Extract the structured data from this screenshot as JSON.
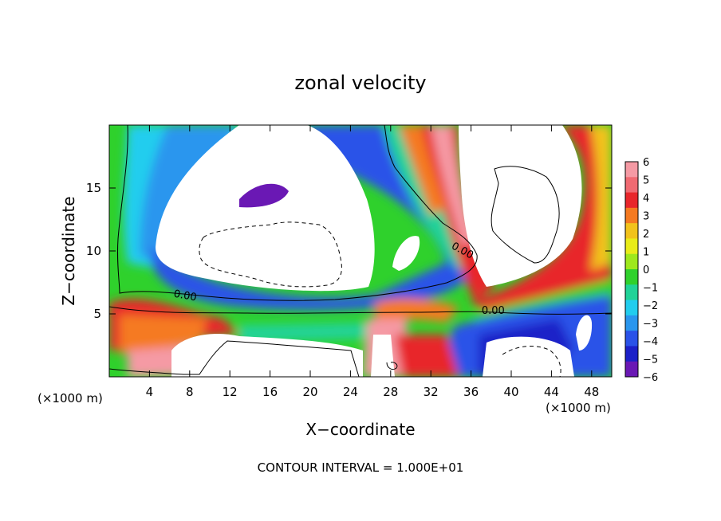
{
  "chart_data": {
    "type": "heatmap",
    "title": "zonal velocity",
    "xlabel": "X−coordinate",
    "ylabel": "Z−coordinate",
    "x_unit_left": "(×1000 m)",
    "x_unit_right": "(×1000 m)",
    "xlim": [
      0,
      50
    ],
    "ylim": [
      0,
      20
    ],
    "x_ticks": [
      4,
      8,
      12,
      16,
      20,
      24,
      28,
      32,
      36,
      40,
      44,
      48
    ],
    "y_ticks": [
      5,
      10,
      15
    ],
    "colorbar": {
      "ticks": [
        6,
        5,
        4,
        3,
        2,
        1,
        0,
        -1,
        -2,
        -3,
        -4,
        -5,
        -6
      ],
      "tick_labels": [
        "6",
        "5",
        "4",
        "3",
        "2",
        "1",
        "0",
        "−1",
        "−2",
        "−3",
        "−4",
        "−5",
        "−6"
      ],
      "colors": [
        "#f59aa4",
        "#f06a72",
        "#e8262b",
        "#f57a20",
        "#f2c21b",
        "#e9ec18",
        "#9ee81c",
        "#2fd12c",
        "#20d398",
        "#22cdee",
        "#2a96ee",
        "#2a52e8",
        "#1c20c8",
        "#6a18b4"
      ]
    },
    "contour_labels": [
      {
        "text": "0.00",
        "x": 7.5,
        "y": 6.2,
        "angle": 10
      },
      {
        "text": "0.00",
        "x": 35.0,
        "y": 9.8,
        "angle": 28
      },
      {
        "text": "0.00",
        "x": 38.2,
        "y": 5.0,
        "angle": 0
      }
    ],
    "footer": "CONTOUR INTERVAL = 1.000E+01"
  }
}
